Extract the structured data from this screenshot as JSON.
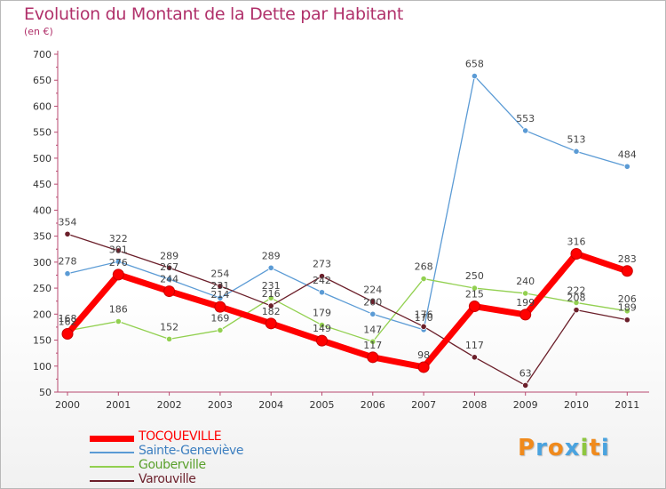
{
  "header": {
    "title": "Evolution du Montant de la Dette par Habitant",
    "unit": "(en €)"
  },
  "logo": {
    "letters": [
      "P",
      "r",
      "o",
      "x",
      "i",
      "t",
      "i"
    ],
    "colors": [
      "#f08a1c",
      "#4aa3df",
      "#f08a1c",
      "#4aa3df",
      "#8dc63f",
      "#f08a1c",
      "#4aa3df"
    ]
  },
  "chart_data": {
    "type": "line",
    "title": "Evolution du Montant de la Dette par Habitant",
    "ylabel": "(en €)",
    "xlabel": "",
    "categories": [
      "2000",
      "2001",
      "2002",
      "2003",
      "2004",
      "2005",
      "2006",
      "2007",
      "2008",
      "2009",
      "2010",
      "2011"
    ],
    "ylim": [
      50,
      700
    ],
    "yticks": [
      50,
      100,
      150,
      200,
      250,
      300,
      350,
      400,
      450,
      500,
      550,
      600,
      650,
      700
    ],
    "grid": false,
    "legend": "bottom-left",
    "series": [
      {
        "name": "TOCQUEVILLE",
        "color": "#ff0000",
        "values": [
          162,
          276,
          244,
          214,
          182,
          149,
          117,
          98,
          215,
          199,
          316,
          283
        ]
      },
      {
        "name": "Sainte-Geneviève",
        "color": "#5b9bd5",
        "values": [
          278,
          301,
          267,
          231,
          289,
          242,
          200,
          170,
          658,
          553,
          513,
          484
        ]
      },
      {
        "name": "Gouberville",
        "color": "#92d050",
        "values": [
          168,
          186,
          152,
          169,
          231,
          179,
          147,
          268,
          250,
          240,
          222,
          206
        ]
      },
      {
        "name": "Varouville",
        "color": "#6b1f2a",
        "values": [
          354,
          322,
          289,
          254,
          216,
          273,
          224,
          176,
          117,
          63,
          208,
          189
        ]
      }
    ]
  }
}
